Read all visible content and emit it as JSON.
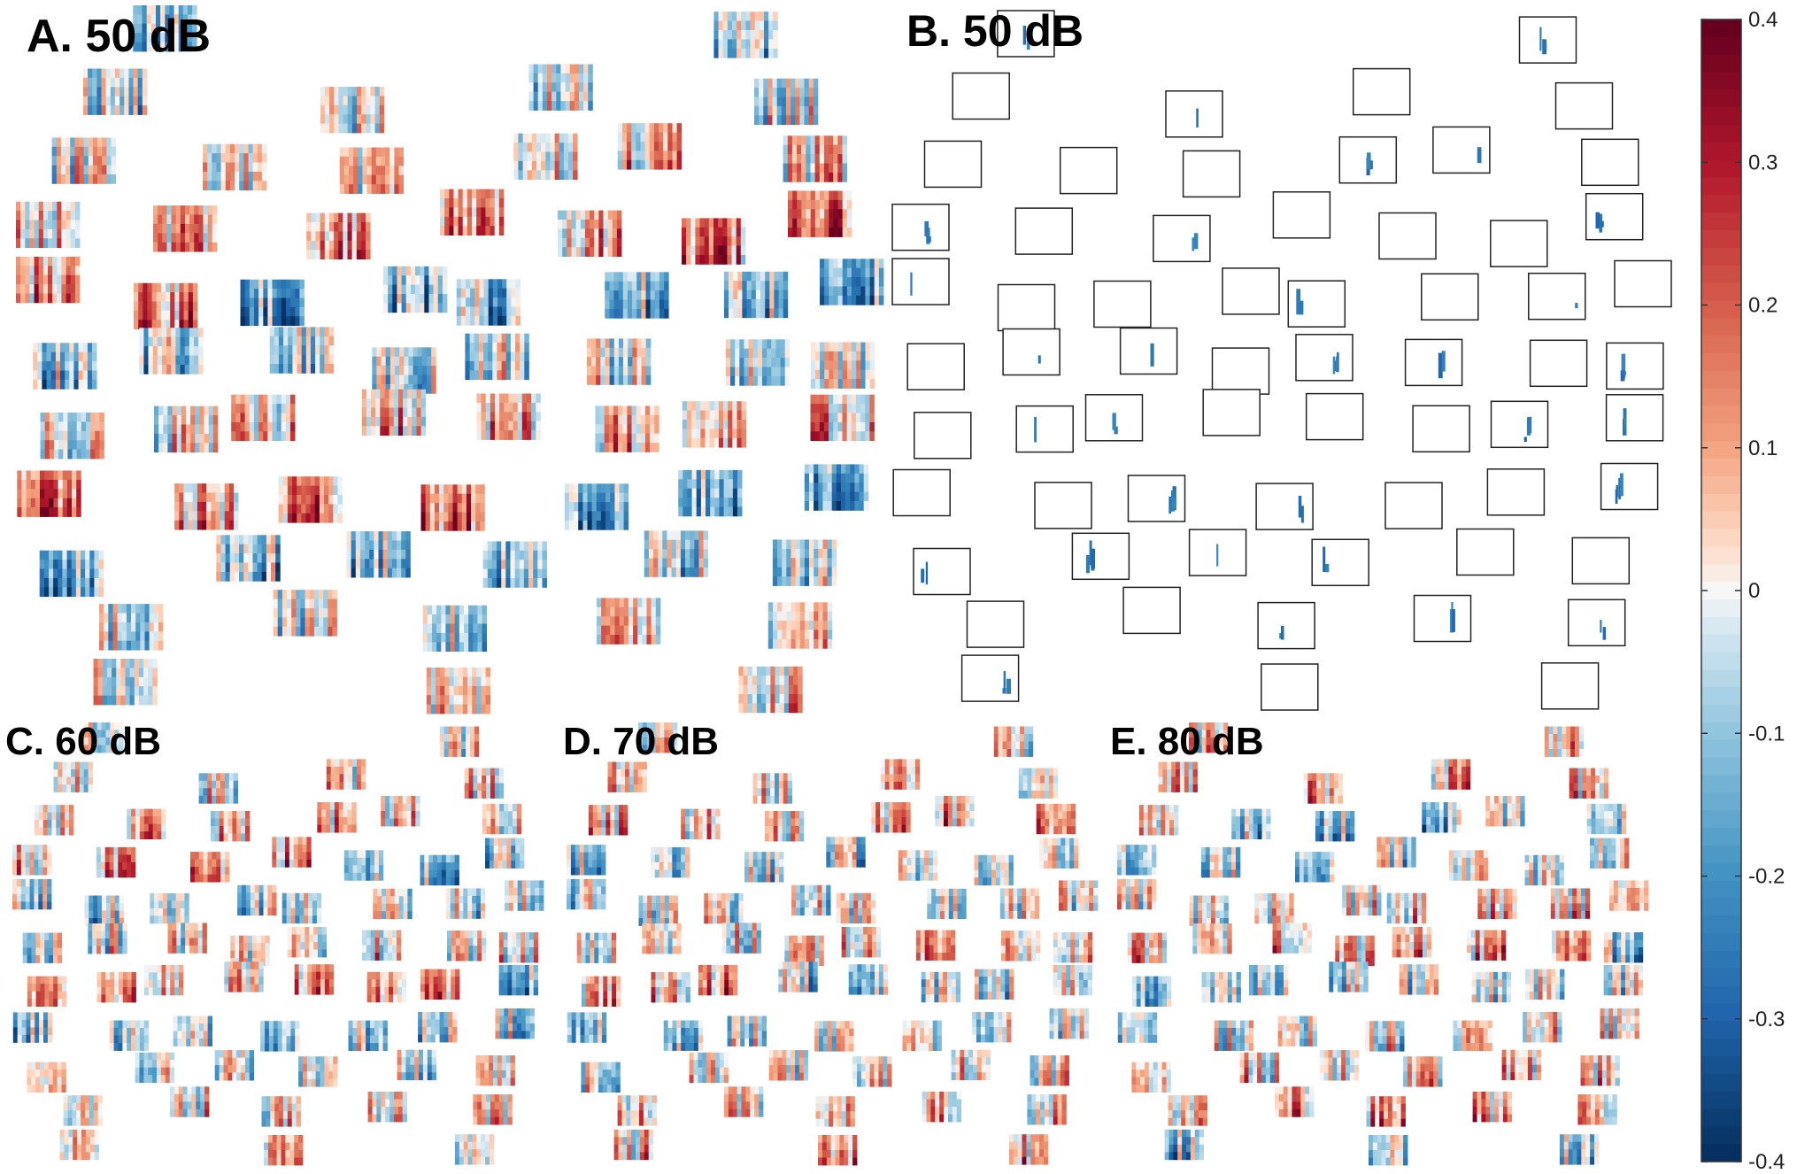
{
  "figure": {
    "panels": [
      {
        "id": "A",
        "label": "A. 50 dB",
        "kind": "heatmap-topography"
      },
      {
        "id": "B",
        "label": "B. 50 dB",
        "kind": "significance-outline"
      },
      {
        "id": "C",
        "label": "C. 60 dB",
        "kind": "heatmap-topography"
      },
      {
        "id": "D",
        "label": "D. 70 dB",
        "kind": "heatmap-topography"
      },
      {
        "id": "E",
        "label": "E. 80 dB",
        "kind": "heatmap-topography"
      }
    ]
  },
  "chart_data": {
    "type": "heatmap",
    "colorbar": {
      "min": -0.4,
      "max": 0.4,
      "ticks": [
        "0.4",
        "0.3",
        "0.2",
        "0.1",
        "0",
        "-0.1",
        "-0.2",
        "-0.3",
        "-0.4"
      ],
      "colormap": "diverging red-white-blue",
      "colors": {
        "high": "#67001f",
        "mid": "#f7f7f7",
        "low": "#053061"
      }
    },
    "electrode_count": 64
  }
}
